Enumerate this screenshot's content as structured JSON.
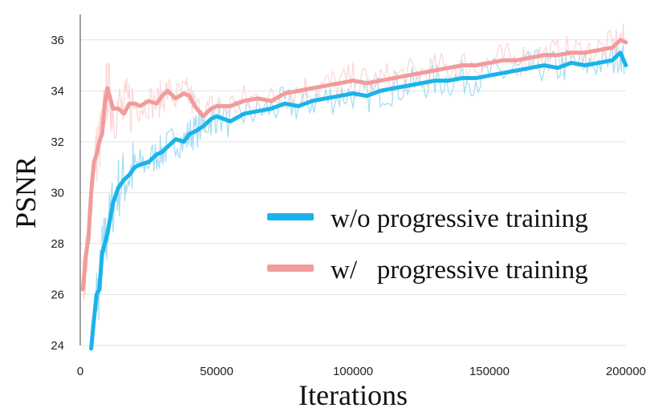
{
  "chart_data": {
    "type": "line",
    "xlabel": "Iterations",
    "ylabel": "PSNR",
    "xlim": [
      0,
      200000
    ],
    "ylim": [
      24,
      37
    ],
    "xticks": [
      "0",
      "50000",
      "100000",
      "150000",
      "200000"
    ],
    "yticks": [
      "24",
      "26",
      "28",
      "30",
      "32",
      "34",
      "36"
    ],
    "grid": "horizontal",
    "legend_position": "center-right",
    "series": [
      {
        "name": "w/o progressive training",
        "color": "#1ab3eb",
        "raw_color": "#a6ddf3",
        "x": [
          4000,
          5000,
          6000,
          7000,
          8000,
          9000,
          10000,
          12000,
          14000,
          16000,
          18000,
          20000,
          22000,
          25000,
          28000,
          30000,
          32000,
          35000,
          38000,
          40000,
          42000,
          45000,
          48000,
          50000,
          55000,
          60000,
          65000,
          70000,
          75000,
          80000,
          85000,
          90000,
          95000,
          100000,
          105000,
          110000,
          115000,
          120000,
          125000,
          130000,
          135000,
          140000,
          145000,
          150000,
          155000,
          160000,
          165000,
          170000,
          175000,
          180000,
          185000,
          190000,
          195000,
          198000,
          200000
        ],
        "y": [
          23.5,
          25.0,
          26.0,
          26.2,
          27.6,
          28.0,
          28.4,
          29.6,
          30.2,
          30.5,
          30.7,
          31.0,
          31.1,
          31.2,
          31.5,
          31.6,
          31.8,
          32.1,
          32.0,
          32.3,
          32.4,
          32.6,
          32.9,
          33.0,
          32.8,
          33.1,
          33.2,
          33.3,
          33.5,
          33.4,
          33.6,
          33.7,
          33.8,
          33.9,
          33.8,
          34.0,
          34.1,
          34.2,
          34.3,
          34.4,
          34.4,
          34.5,
          34.5,
          34.6,
          34.7,
          34.8,
          34.9,
          35.0,
          34.9,
          35.1,
          35.0,
          35.1,
          35.2,
          35.5,
          35.0
        ]
      },
      {
        "name": "w/   progressive training",
        "color": "#f29b9b",
        "raw_color": "#fbd8d8",
        "x": [
          1000,
          2000,
          3000,
          4000,
          5000,
          6000,
          7000,
          8000,
          9000,
          10000,
          11000,
          12000,
          14000,
          16000,
          18000,
          20000,
          22000,
          25000,
          28000,
          30000,
          32000,
          35000,
          38000,
          40000,
          42000,
          45000,
          48000,
          50000,
          55000,
          60000,
          65000,
          70000,
          75000,
          80000,
          85000,
          90000,
          95000,
          100000,
          105000,
          110000,
          115000,
          120000,
          125000,
          130000,
          135000,
          140000,
          145000,
          150000,
          155000,
          160000,
          165000,
          170000,
          175000,
          180000,
          185000,
          190000,
          195000,
          198000,
          200000
        ],
        "y": [
          26.2,
          27.5,
          28.2,
          30.0,
          31.2,
          31.5,
          32.0,
          32.3,
          33.5,
          34.1,
          33.7,
          33.3,
          33.3,
          33.1,
          33.5,
          33.5,
          33.4,
          33.6,
          33.5,
          33.8,
          34.0,
          33.7,
          33.9,
          33.8,
          33.4,
          33.0,
          33.3,
          33.4,
          33.4,
          33.6,
          33.7,
          33.6,
          33.9,
          34.0,
          34.1,
          34.2,
          34.3,
          34.4,
          34.3,
          34.4,
          34.5,
          34.6,
          34.7,
          34.8,
          34.9,
          35.0,
          35.0,
          35.1,
          35.2,
          35.2,
          35.3,
          35.4,
          35.4,
          35.5,
          35.5,
          35.6,
          35.7,
          36.0,
          35.9
        ]
      }
    ]
  }
}
